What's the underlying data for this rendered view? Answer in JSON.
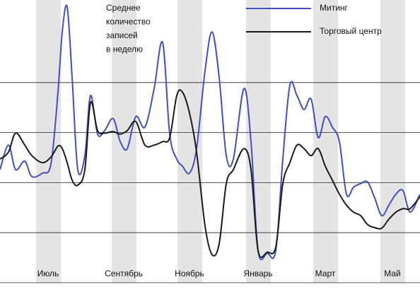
{
  "chart_data": {
    "type": "line",
    "title": [
      "Среднее",
      "количество",
      "записей",
      "в неделю"
    ],
    "x": [
      0,
      0.24,
      0.44,
      0.7,
      0.9,
      1.2,
      1.44,
      1.64,
      1.76,
      1.9,
      2.04,
      2.2,
      2.4,
      2.56,
      2.76,
      2.96,
      3.2,
      3.4,
      3.6,
      3.84,
      4.1,
      4.36,
      4.6,
      4.8,
      5,
      5.16,
      5.36,
      5.56,
      5.8,
      6,
      6.2,
      6.4,
      6.6,
      6.9,
      7.1,
      7.3,
      7.56,
      7.8,
      8,
      8.2,
      8.4,
      8.6,
      8.8,
      9,
      9.2,
      9.4,
      9.6,
      9.8,
      10,
      10.2,
      10.4,
      10.6,
      10.8,
      11,
      11.2,
      11.4,
      11.6,
      11.88
    ],
    "series": [
      {
        "name": "Митинг",
        "color": "#3f51c0",
        "values": [
          2.26,
          2.75,
          2.26,
          2.43,
          2.12,
          2.19,
          2.37,
          3.81,
          5.01,
          5.51,
          4.1,
          2.26,
          2.54,
          3.74,
          2.97,
          3.04,
          3.28,
          2.82,
          2.68,
          3.32,
          3.11,
          3.88,
          4.8,
          2.97,
          2.47,
          2.33,
          2.19,
          2.68,
          4.24,
          5.01,
          4.1,
          2.54,
          2.47,
          3.88,
          2.82,
          0.64,
          0.59,
          0.64,
          2.47,
          3.95,
          3.74,
          3.46,
          3.67,
          2.9,
          3.32,
          3.11,
          2.82,
          1.77,
          1.91,
          1.98,
          2.01,
          1.69,
          1.34,
          1.55,
          1.77,
          1.84,
          1.41,
          1.77
        ]
      },
      {
        "name": "Торговый центр",
        "color": "#1a1a1a",
        "values": [
          2.47,
          2.61,
          2.99,
          2.75,
          2.54,
          2.4,
          2.51,
          2.73,
          2.68,
          2.4,
          2.05,
          1.95,
          2.26,
          3.6,
          3.04,
          2.99,
          3.02,
          2.97,
          3.04,
          3.22,
          2.75,
          2.75,
          2.82,
          2.9,
          3.74,
          3.81,
          3.39,
          2.61,
          1.13,
          0.56,
          0.78,
          1.98,
          2.26,
          2.68,
          2.26,
          0.64,
          0.61,
          0.71,
          1.98,
          2.4,
          2.75,
          2.68,
          2.54,
          2.68,
          2.33,
          2.05,
          1.77,
          1.55,
          1.41,
          1.34,
          1.16,
          1.1,
          1.09,
          1.27,
          1.41,
          1.48,
          1.48,
          1.72
        ]
      }
    ],
    "xlim": [
      0,
      11.88
    ],
    "xticks": [
      {
        "value": 1.36,
        "label": "Июль"
      },
      {
        "value": 3.5,
        "label": "Сентябрь"
      },
      {
        "value": 5.36,
        "label": "Ноябрь"
      },
      {
        "value": 7.3,
        "label": "Январь"
      },
      {
        "value": 9.2,
        "label": "Март"
      },
      {
        "value": 11.1,
        "label": "Май"
      }
    ],
    "ylim": [
      0,
      5.65
    ],
    "yticks": [
      0,
      1,
      2,
      3,
      4
    ],
    "grid": true
  }
}
